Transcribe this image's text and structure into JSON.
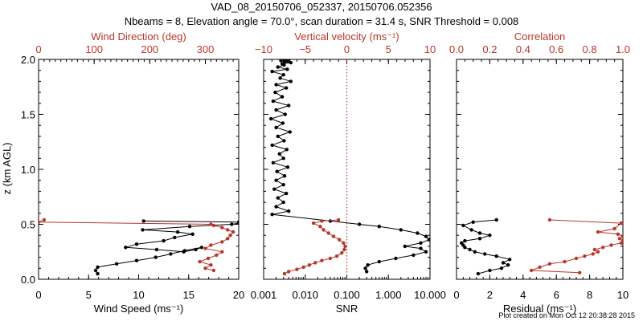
{
  "colors": {
    "primary": "#000000",
    "accent": "#b8372a"
  },
  "chart_data": [
    {
      "type": "line",
      "figure_title_line1": "VAD_08_20150706_052337, 20150706.052356",
      "figure_title_line2": "Nbeams = 8, Elevation angle = 70.0°, scan duration = 31.4 s, SNR Threshold = 0.008",
      "ylabel": "z (km AGL)",
      "ylim": [
        0,
        2.0
      ],
      "y_ticks": [
        "0.0",
        "0.5",
        "1.0",
        "1.5",
        "2.0"
      ],
      "footer": "Plot created on Mon Oct 12 20:38:28 2015",
      "panels": [
        {
          "xlabel_bottom": "Wind Speed (ms⁻¹)",
          "xlabel_top": "Wind Direction (deg)",
          "xlim_bottom": [
            0,
            20
          ],
          "xscale_bottom": "linear",
          "xlim_top": [
            0,
            360
          ],
          "xscale_top": "linear",
          "bottom_ticks": [
            {
              "v": 0,
              "label": "0"
            },
            {
              "v": 5,
              "label": "5"
            },
            {
              "v": 10,
              "label": "10"
            },
            {
              "v": 15,
              "label": "15"
            },
            {
              "v": 20,
              "label": "20"
            }
          ],
          "top_ticks": [
            {
              "v": 0,
              "label": "0"
            },
            {
              "v": 100,
              "label": "100"
            },
            {
              "v": 200,
              "label": "200"
            },
            {
              "v": 300,
              "label": "300"
            }
          ],
          "series": [
            {
              "name": "Wind Speed",
              "axis": "bottom",
              "color": "#000000",
              "markers": true,
              "x": [
                5.9,
                5.7,
                5.9,
                7.8,
                9.8,
                11.7,
                13.2,
                14.6,
                16.3,
                15.7,
                14.5,
                11.8,
                8.7,
                9.8,
                12.5,
                13.6,
                15.4,
                13.9,
                10.4,
                15.1,
                19.3,
                20,
                20,
                10.5
              ],
              "y": [
                0.05,
                0.08,
                0.11,
                0.14,
                0.17,
                0.2,
                0.23,
                0.26,
                0.29,
                0.27,
                0.25,
                0.27,
                0.29,
                0.32,
                0.35,
                0.38,
                0.41,
                0.43,
                0.45,
                0.48,
                0.5,
                0.51,
                0.52,
                0.53
              ]
            },
            {
              "name": "Wind Direction",
              "axis": "top",
              "color": "#b8372a",
              "markers": true,
              "x": [
                315,
                300,
                310,
                290,
                305,
                320,
                330,
                300,
                310,
                330,
                340,
                345,
                350,
                340,
                330,
                315,
                310,
                0,
                10
              ],
              "y": [
                0.08,
                0.1,
                0.13,
                0.16,
                0.19,
                0.22,
                0.25,
                0.28,
                0.31,
                0.34,
                0.37,
                0.4,
                0.43,
                0.45,
                0.47,
                0.49,
                0.5,
                0.52,
                0.54
              ]
            }
          ],
          "right_tick_labels": false
        },
        {
          "xlabel_bottom": "SNR",
          "xlabel_top": "Vertical velocity (ms⁻¹)",
          "xlim_bottom": [
            0.001,
            10
          ],
          "xscale_bottom": "log",
          "xlim_top": [
            -10,
            10
          ],
          "xscale_top": "linear",
          "bottom_ticks": [
            {
              "v": 0.001,
              "label": "0.001"
            },
            {
              "v": 0.01,
              "label": "0.010"
            },
            {
              "v": 0.1,
              "label": "0.100"
            },
            {
              "v": 1,
              "label": "1.000"
            },
            {
              "v": 10,
              "label": "10.000"
            }
          ],
          "top_ticks": [
            {
              "v": -10,
              "label": "−10"
            },
            {
              "v": -5,
              "label": "−5"
            },
            {
              "v": 0,
              "label": "0"
            },
            {
              "v": 5,
              "label": "5"
            },
            {
              "v": 10,
              "label": "10"
            }
          ],
          "reference_line": {
            "axis": "top",
            "value": 0,
            "style": "dotted",
            "color": "#b8372a"
          },
          "series": [
            {
              "name": "SNR",
              "axis": "bottom",
              "color": "#000000",
              "markers": true,
              "x": [
                0.3,
                0.28,
                0.32,
                0.6,
                1.5,
                4.0,
                8.0,
                6.0,
                2.5,
                6.0,
                9.5,
                8.0,
                5.0,
                2.0,
                0.6,
                0.2,
                0.04,
                0.0016,
                0.004,
                0.002,
                0.003,
                0.0022,
                0.0035,
                0.0018,
                0.003,
                0.002,
                0.0032,
                0.0021,
                0.0038,
                0.0017,
                0.003,
                0.0024,
                0.0036,
                0.0016,
                0.0031,
                0.0022,
                0.0043,
                0.002,
                0.0029,
                0.0015,
                0.0033,
                0.002,
                0.004,
                0.0017,
                0.0028,
                0.0019,
                0.0035,
                0.002,
                0.0045,
                0.0025,
                0.003,
                0.0016,
                0.0037,
                0.0022,
                0.0031,
                0.0028,
                0.0045,
                0.0032,
                0.0038,
                0.0026,
                0.004,
                0.0029
              ],
              "y": [
                0.07,
                0.1,
                0.13,
                0.16,
                0.19,
                0.22,
                0.25,
                0.28,
                0.3,
                0.33,
                0.36,
                0.39,
                0.42,
                0.45,
                0.48,
                0.5,
                0.53,
                0.59,
                0.62,
                0.66,
                0.7,
                0.74,
                0.78,
                0.82,
                0.86,
                0.9,
                0.94,
                0.98,
                1.02,
                1.06,
                1.1,
                1.14,
                1.18,
                1.22,
                1.26,
                1.3,
                1.34,
                1.38,
                1.42,
                1.46,
                1.5,
                1.54,
                1.58,
                1.62,
                1.66,
                1.7,
                1.74,
                1.77,
                1.8,
                1.83,
                1.86,
                1.89,
                1.91,
                1.93,
                1.95,
                1.96,
                1.97,
                1.98,
                1.985,
                1.99,
                1.995,
                1.998
              ]
            },
            {
              "name": "Vertical velocity",
              "axis": "top",
              "color": "#b8372a",
              "markers": true,
              "x": [
                -7.5,
                -7.0,
                -6.0,
                -5.2,
                -4.5,
                -3.8,
                -3.0,
                -2.0,
                -1.2,
                -0.6,
                -0.3,
                -0.2,
                -0.4,
                -0.9,
                -1.6,
                -2.2,
                -2.8,
                -3.2,
                -4.0,
                -3.0,
                -1.0
              ],
              "y": [
                0.05,
                0.07,
                0.09,
                0.11,
                0.13,
                0.15,
                0.17,
                0.19,
                0.21,
                0.24,
                0.27,
                0.3,
                0.33,
                0.36,
                0.39,
                0.42,
                0.45,
                0.48,
                0.51,
                0.53,
                0.54
              ]
            }
          ],
          "right_tick_labels": false
        },
        {
          "xlabel_bottom": "Residual (ms⁻¹)",
          "xlabel_top": "Correlation",
          "xlim_bottom": [
            0,
            10
          ],
          "xscale_bottom": "linear",
          "xlim_top": [
            0,
            1.0
          ],
          "xscale_top": "linear",
          "bottom_ticks": [
            {
              "v": 0,
              "label": "0"
            },
            {
              "v": 2,
              "label": "2"
            },
            {
              "v": 4,
              "label": "4"
            },
            {
              "v": 6,
              "label": "6"
            },
            {
              "v": 8,
              "label": "8"
            },
            {
              "v": 10,
              "label": "10"
            }
          ],
          "top_ticks": [
            {
              "v": 0,
              "label": "0.0"
            },
            {
              "v": 0.2,
              "label": "0.2"
            },
            {
              "v": 0.4,
              "label": "0.4"
            },
            {
              "v": 0.6,
              "label": "0.6"
            },
            {
              "v": 0.8,
              "label": "0.8"
            },
            {
              "v": 1.0,
              "label": "1.0"
            }
          ],
          "series": [
            {
              "name": "Residual",
              "axis": "bottom",
              "color": "#000000",
              "markers": true,
              "x": [
                1.3,
                2.0,
                2.7,
                3.1,
                2.8,
                3.2,
                2.4,
                1.7,
                1.1,
                0.8,
                0.5,
                0.4,
                0.3,
                0.5,
                1.4,
                2.0,
                1.4,
                0.9,
                0.4,
                1.0,
                2.4
              ],
              "y": [
                0.05,
                0.08,
                0.1,
                0.13,
                0.15,
                0.18,
                0.21,
                0.23,
                0.25,
                0.27,
                0.29,
                0.31,
                0.33,
                0.35,
                0.37,
                0.4,
                0.42,
                0.45,
                0.49,
                0.52,
                0.54
              ]
            },
            {
              "name": "Correlation",
              "axis": "top",
              "color": "#b8372a",
              "markers": true,
              "x": [
                0.74,
                0.45,
                0.5,
                0.56,
                0.65,
                0.72,
                0.77,
                0.82,
                0.85,
                0.83,
                0.88,
                0.93,
                0.99,
                1.0,
                0.98,
                1.0,
                0.97,
                0.85,
                0.95,
                0.99,
                0.56
              ],
              "y": [
                0.06,
                0.08,
                0.11,
                0.14,
                0.16,
                0.19,
                0.21,
                0.23,
                0.25,
                0.27,
                0.29,
                0.31,
                0.33,
                0.35,
                0.37,
                0.39,
                0.41,
                0.43,
                0.46,
                0.51,
                0.54
              ]
            }
          ],
          "right_tick_labels": false
        }
      ]
    }
  ]
}
